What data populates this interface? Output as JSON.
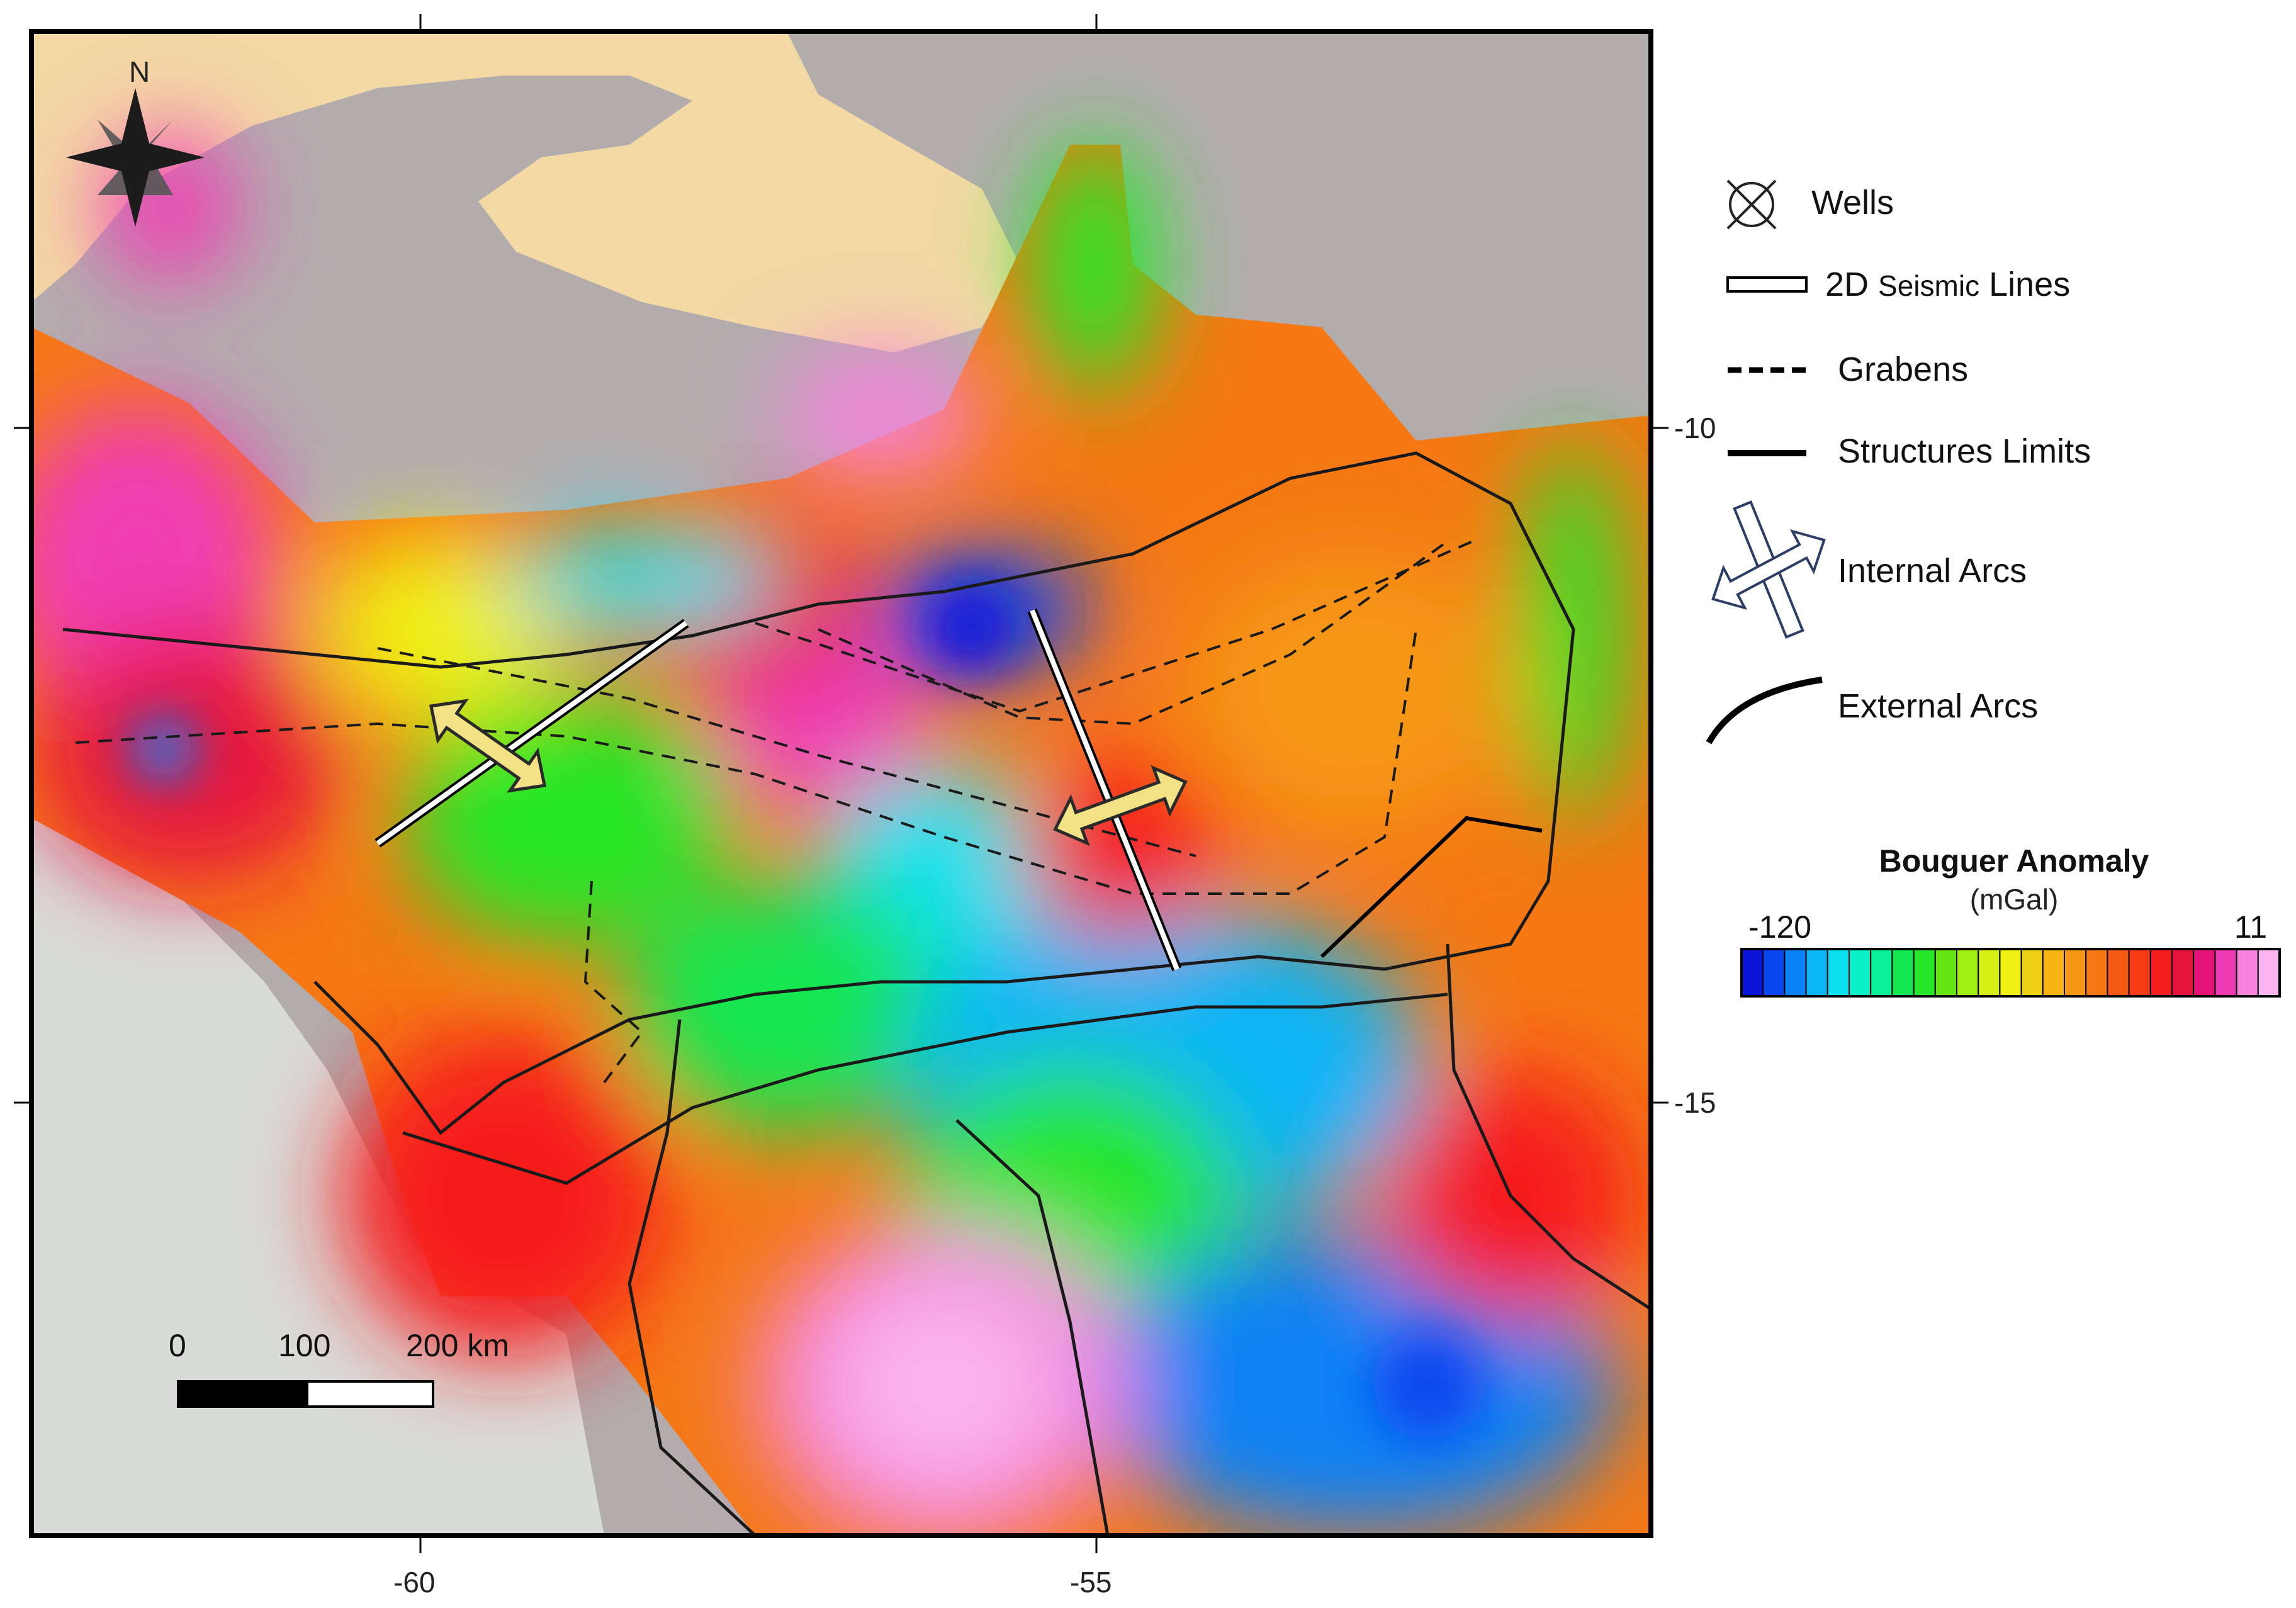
{
  "map": {
    "lon_ticks": [
      "-60",
      "-55"
    ],
    "lat_ticks": [
      "-10",
      "-15"
    ],
    "north_label": "N"
  },
  "legend": {
    "wells": "Wells",
    "seismic_prefix": "2D",
    "seismic_mid": "Seismic",
    "seismic_suffix": "Lines",
    "grabens": "Grabens",
    "structures": "Structures Limits",
    "internal_arcs": "Internal Arcs",
    "external_arcs": "External Arcs"
  },
  "colorbar": {
    "title": "Bouguer Anomaly",
    "unit": "(mGal)",
    "min": "-120",
    "max": "11",
    "colors": [
      "#0a14d8",
      "#0a46f0",
      "#0a82f5",
      "#0ab4f5",
      "#0ae1f0",
      "#0af0c8",
      "#0af096",
      "#14e650",
      "#28e628",
      "#64e614",
      "#a0f014",
      "#d2f014",
      "#f0f014",
      "#f0d214",
      "#f5b414",
      "#f59614",
      "#f57814",
      "#f55a14",
      "#f53c14",
      "#f51e1e",
      "#e6143c",
      "#e61478",
      "#f03cb4",
      "#f582dc",
      "#fab4f0"
    ]
  },
  "scale_bar": {
    "labels": [
      "0",
      "100",
      "200 km"
    ]
  }
}
